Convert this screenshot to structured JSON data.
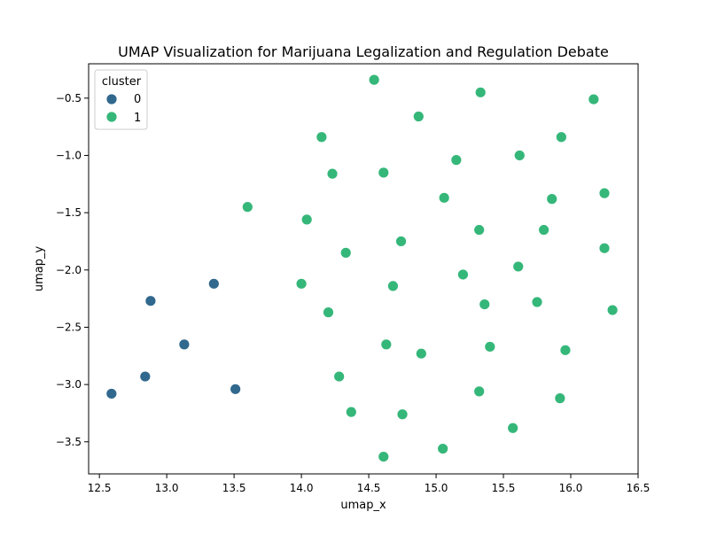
{
  "chart_data": {
    "type": "scatter",
    "title": "UMAP Visualization for Marijuana Legalization and Regulation Debate",
    "xlabel": "umap_x",
    "ylabel": "umap_y",
    "xlim": [
      12.42,
      16.5
    ],
    "ylim": [
      -3.78,
      -0.2
    ],
    "xticks": [
      12.5,
      13.0,
      13.5,
      14.0,
      14.5,
      15.0,
      15.5,
      16.0,
      16.5
    ],
    "yticks": [
      -3.5,
      -3.0,
      -2.5,
      -2.0,
      -1.5,
      -1.0,
      -0.5
    ],
    "xtick_labels": [
      "12.5",
      "13.0",
      "13.5",
      "14.0",
      "14.5",
      "15.0",
      "15.5",
      "16.0",
      "16.5"
    ],
    "ytick_labels": [
      "−3.5",
      "−3.0",
      "−2.5",
      "−2.0",
      "−1.5",
      "−1.0",
      "−0.5"
    ],
    "grid": false,
    "legend": {
      "title": "cluster",
      "placement": "top-left",
      "entries": [
        {
          "label": "0",
          "color": "#31688e"
        },
        {
          "label": "1",
          "color": "#35b779"
        }
      ]
    },
    "series": [
      {
        "name": "0",
        "color": "#31688e",
        "points": [
          {
            "x": 12.59,
            "y": -3.08
          },
          {
            "x": 12.84,
            "y": -2.93
          },
          {
            "x": 12.88,
            "y": -2.27
          },
          {
            "x": 13.13,
            "y": -2.65
          },
          {
            "x": 13.35,
            "y": -2.12
          },
          {
            "x": 13.51,
            "y": -3.04
          }
        ]
      },
      {
        "name": "1",
        "color": "#35b779",
        "points": [
          {
            "x": 14.54,
            "y": -0.34
          },
          {
            "x": 15.33,
            "y": -0.45
          },
          {
            "x": 16.17,
            "y": -0.51
          },
          {
            "x": 14.87,
            "y": -0.66
          },
          {
            "x": 14.15,
            "y": -0.84
          },
          {
            "x": 15.93,
            "y": -0.84
          },
          {
            "x": 15.62,
            "y": -1.0
          },
          {
            "x": 15.15,
            "y": -1.04
          },
          {
            "x": 14.23,
            "y": -1.16
          },
          {
            "x": 14.61,
            "y": -1.15
          },
          {
            "x": 15.06,
            "y": -1.37
          },
          {
            "x": 15.86,
            "y": -1.38
          },
          {
            "x": 16.25,
            "y": -1.33
          },
          {
            "x": 13.6,
            "y": -1.45
          },
          {
            "x": 14.04,
            "y": -1.56
          },
          {
            "x": 15.32,
            "y": -1.65
          },
          {
            "x": 15.8,
            "y": -1.65
          },
          {
            "x": 14.74,
            "y": -1.75
          },
          {
            "x": 16.25,
            "y": -1.81
          },
          {
            "x": 14.33,
            "y": -1.85
          },
          {
            "x": 15.61,
            "y": -1.97
          },
          {
            "x": 15.2,
            "y": -2.04
          },
          {
            "x": 14.0,
            "y": -2.12
          },
          {
            "x": 14.68,
            "y": -2.14
          },
          {
            "x": 14.2,
            "y": -2.37
          },
          {
            "x": 15.36,
            "y": -2.3
          },
          {
            "x": 15.75,
            "y": -2.28
          },
          {
            "x": 16.31,
            "y": -2.35
          },
          {
            "x": 14.63,
            "y": -2.65
          },
          {
            "x": 15.4,
            "y": -2.67
          },
          {
            "x": 15.96,
            "y": -2.7
          },
          {
            "x": 14.89,
            "y": -2.73
          },
          {
            "x": 14.28,
            "y": -2.93
          },
          {
            "x": 15.32,
            "y": -3.06
          },
          {
            "x": 15.92,
            "y": -3.12
          },
          {
            "x": 14.37,
            "y": -3.24
          },
          {
            "x": 14.75,
            "y": -3.26
          },
          {
            "x": 15.57,
            "y": -3.38
          },
          {
            "x": 15.05,
            "y": -3.56
          },
          {
            "x": 14.61,
            "y": -3.63
          }
        ]
      }
    ]
  }
}
